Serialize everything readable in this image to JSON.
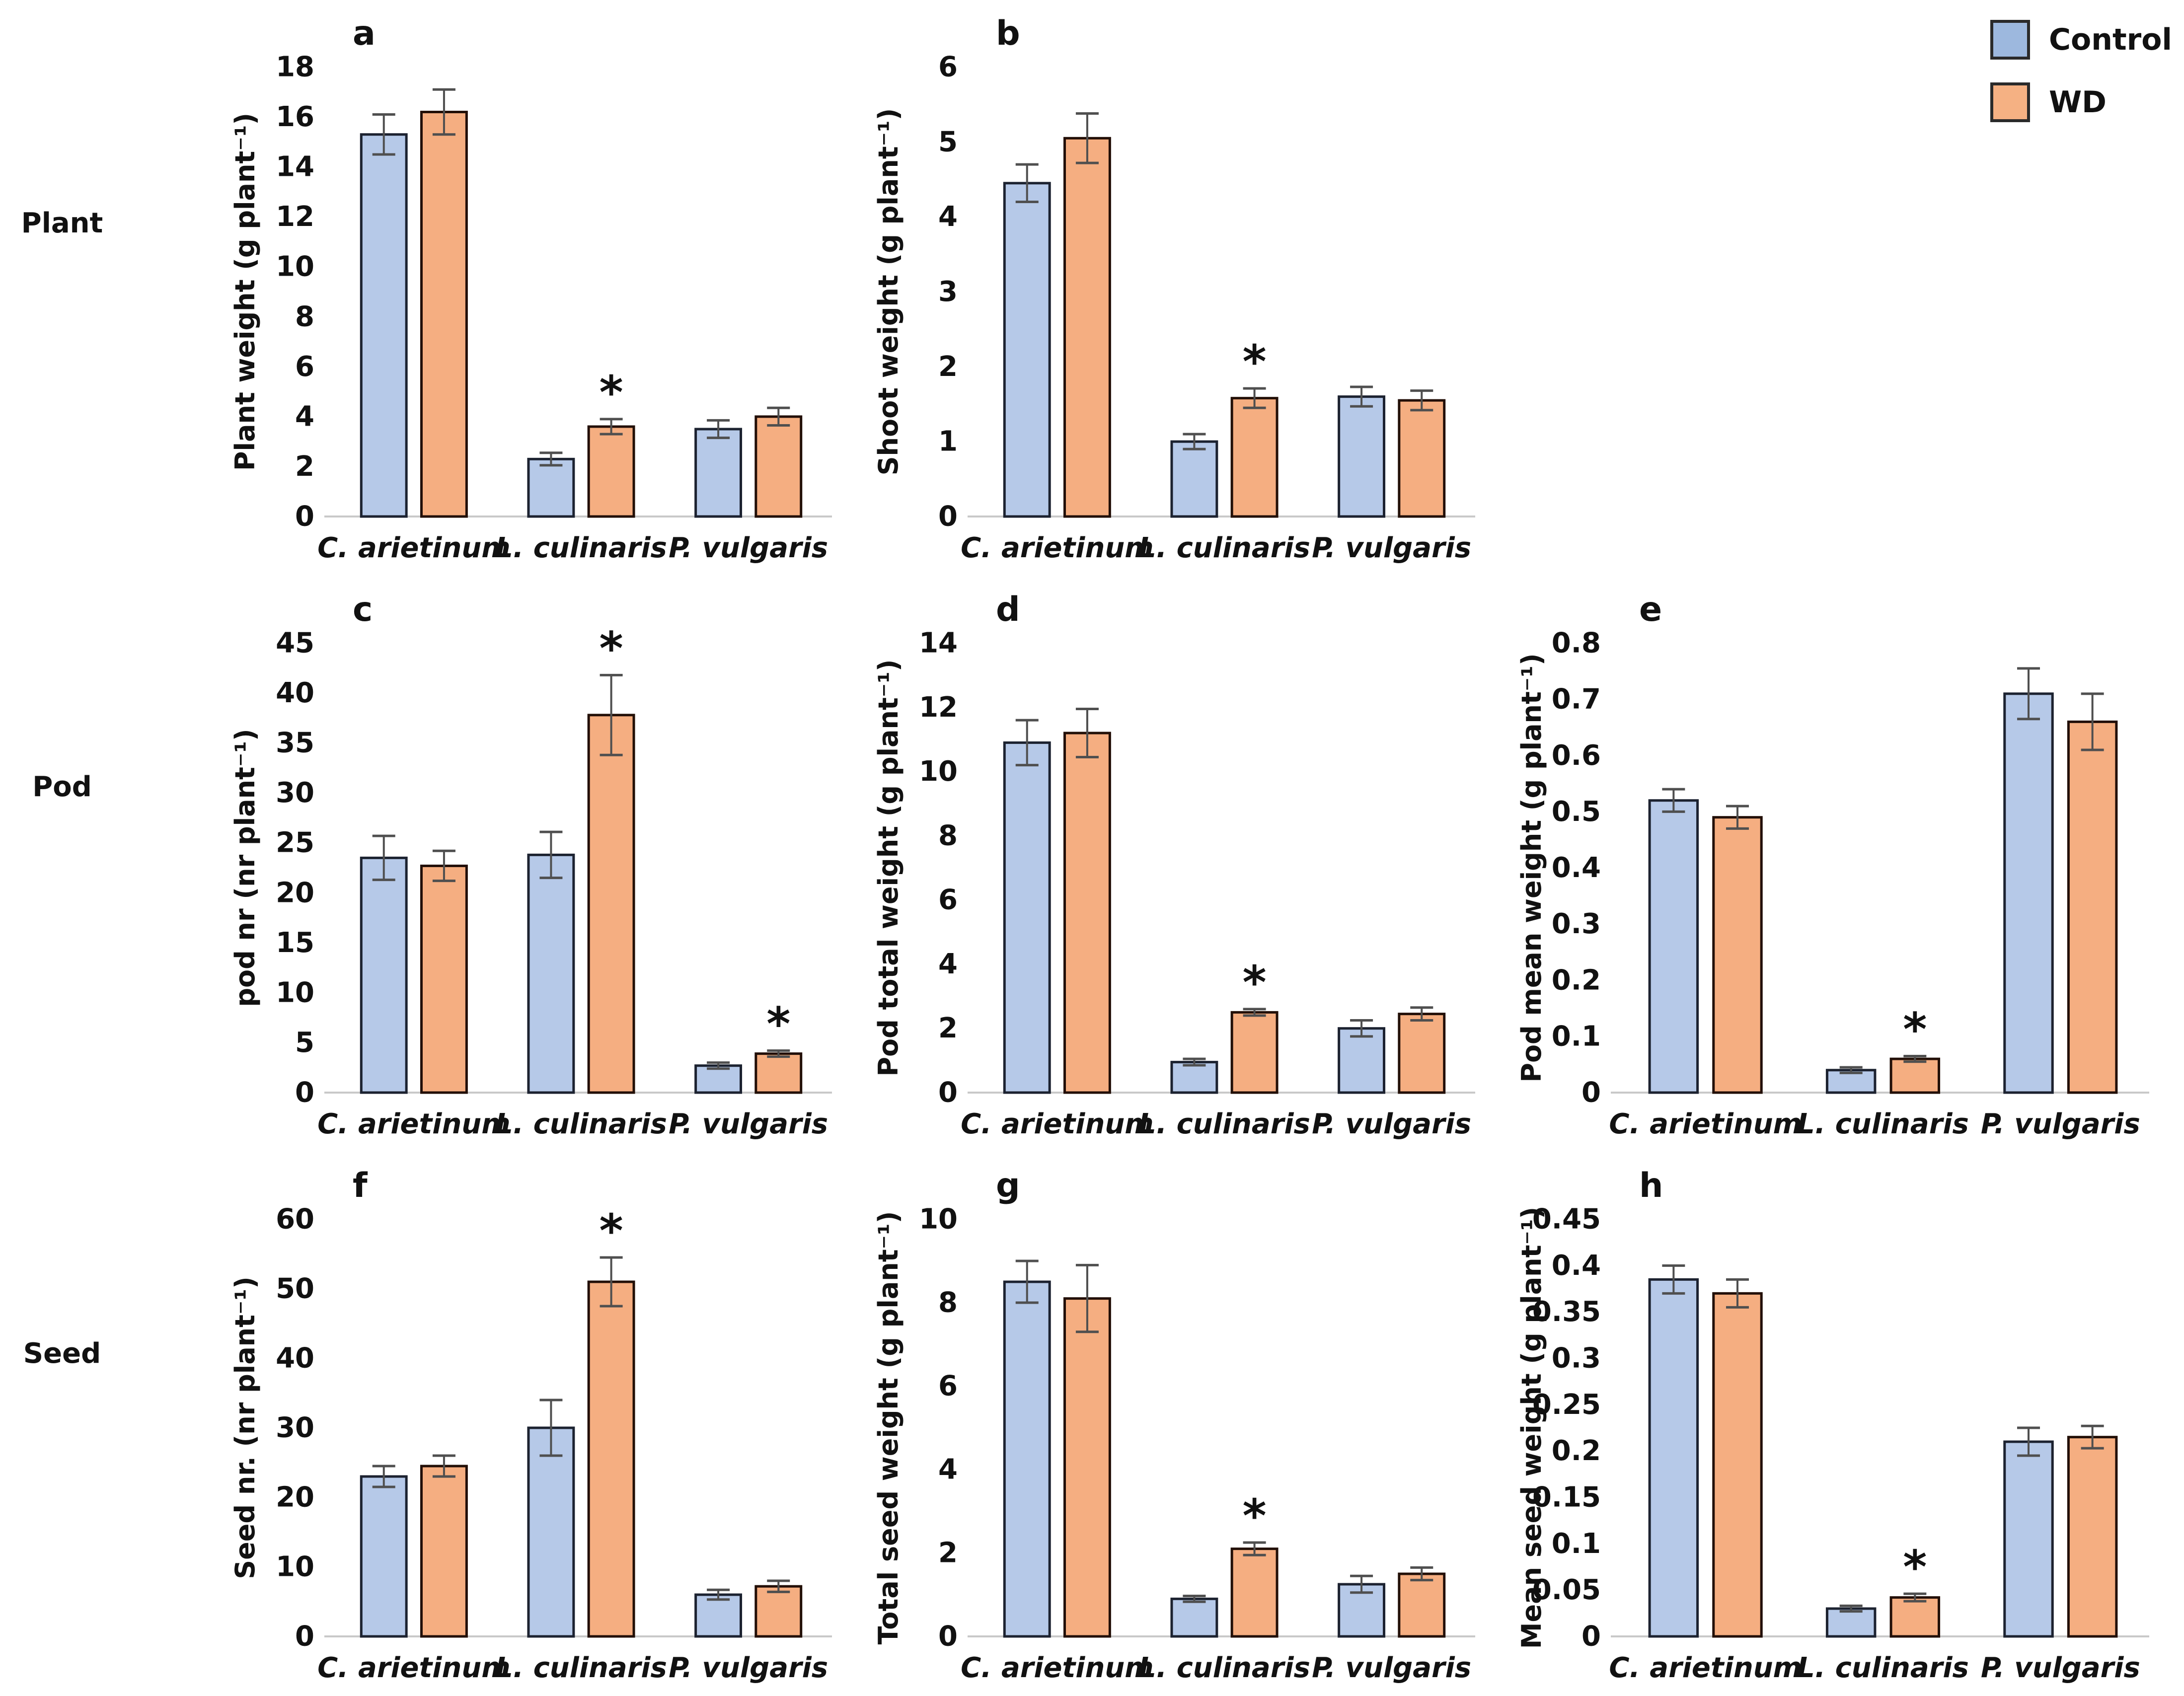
{
  "row_labels": [
    "Plant",
    "Pod",
    "Seed"
  ],
  "legend": {
    "items": [
      {
        "label": "Control",
        "color": "#9db8de"
      },
      {
        "label": "WD",
        "color": "#f5b183"
      }
    ]
  },
  "colors": {
    "control_fill": "#b6c9e8",
    "control_stroke": "#1c2230",
    "wd_fill": "#f5ae81",
    "wd_stroke": "#220f07",
    "legend_control": "#9db8de",
    "legend_wd": "#f5b183",
    "error_bar": "#4f4f4f",
    "baseline": "#c9c9c9",
    "significance_marker": "*"
  },
  "chart_data": [
    {
      "type": "bar",
      "letter": "a",
      "ylabel": "Plant weight (g plant⁻¹)",
      "ylim": [
        0,
        18
      ],
      "ystep": 2,
      "grid": false,
      "categories": [
        "C. arietinum",
        "L. culinaris",
        "P. vulgaris"
      ],
      "series": [
        {
          "name": "Control",
          "values": [
            15.3,
            2.3,
            3.5
          ],
          "errors": [
            0.8,
            0.25,
            0.35
          ],
          "sig": [
            false,
            false,
            false
          ]
        },
        {
          "name": "WD",
          "values": [
            16.2,
            3.6,
            4.0
          ],
          "errors": [
            0.9,
            0.3,
            0.35
          ],
          "sig": [
            false,
            true,
            false
          ]
        }
      ]
    },
    {
      "type": "bar",
      "letter": "b",
      "ylabel": "Shoot weight (g plant⁻¹)",
      "ylim": [
        0,
        6
      ],
      "ystep": 1,
      "grid": false,
      "categories": [
        "C. arietinum",
        "L. culinaris",
        "P. vulgaris"
      ],
      "series": [
        {
          "name": "Control",
          "values": [
            4.45,
            1.0,
            1.6
          ],
          "errors": [
            0.25,
            0.1,
            0.13
          ],
          "sig": [
            false,
            false,
            false
          ]
        },
        {
          "name": "WD",
          "values": [
            5.05,
            1.58,
            1.55
          ],
          "errors": [
            0.33,
            0.13,
            0.13
          ],
          "sig": [
            false,
            true,
            false
          ]
        }
      ]
    },
    {
      "type": "bar",
      "letter": "c",
      "ylabel": "pod nr (nr plant⁻¹)",
      "ylim": [
        0,
        45
      ],
      "ystep": 5,
      "grid": false,
      "categories": [
        "C. arietinum",
        "L. culinaris",
        "P. vulgaris"
      ],
      "series": [
        {
          "name": "Control",
          "values": [
            23.5,
            23.8,
            2.7
          ],
          "errors": [
            2.2,
            2.3,
            0.3
          ],
          "sig": [
            false,
            false,
            false
          ]
        },
        {
          "name": "WD",
          "values": [
            22.7,
            37.8,
            3.9
          ],
          "errors": [
            1.5,
            4.0,
            0.3
          ],
          "sig": [
            false,
            true,
            true
          ]
        }
      ]
    },
    {
      "type": "bar",
      "letter": "d",
      "ylabel": "Pod total weight (g plant⁻¹)",
      "ylim": [
        0,
        14
      ],
      "ystep": 2,
      "grid": false,
      "categories": [
        "C. arietinum",
        "L. culinaris",
        "P. vulgaris"
      ],
      "series": [
        {
          "name": "Control",
          "values": [
            10.9,
            0.95,
            2.0
          ],
          "errors": [
            0.7,
            0.1,
            0.25
          ],
          "sig": [
            false,
            false,
            false
          ]
        },
        {
          "name": "WD",
          "values": [
            11.2,
            2.5,
            2.45
          ],
          "errors": [
            0.75,
            0.1,
            0.2
          ],
          "sig": [
            false,
            true,
            false
          ]
        }
      ]
    },
    {
      "type": "bar",
      "letter": "e",
      "ylabel": "Pod mean weight (g plant⁻¹)",
      "ylim": [
        0,
        0.8
      ],
      "ystep": 0.1,
      "grid": false,
      "categories": [
        "C. arietinum",
        "L. culinaris",
        "P. vulgaris"
      ],
      "series": [
        {
          "name": "Control",
          "values": [
            0.52,
            0.04,
            0.71
          ],
          "errors": [
            0.02,
            0.005,
            0.045
          ],
          "sig": [
            false,
            false,
            false
          ]
        },
        {
          "name": "WD",
          "values": [
            0.49,
            0.06,
            0.66
          ],
          "errors": [
            0.02,
            0.005,
            0.05
          ],
          "sig": [
            false,
            true,
            false
          ]
        }
      ]
    },
    {
      "type": "bar",
      "letter": "f",
      "ylabel": "Seed nr. (nr plant⁻¹)",
      "ylim": [
        0,
        60
      ],
      "ystep": 10,
      "grid": false,
      "categories": [
        "C. arietinum",
        "L. culinaris",
        "P. vulgaris"
      ],
      "series": [
        {
          "name": "Control",
          "values": [
            23,
            30,
            6
          ],
          "errors": [
            1.5,
            4.0,
            0.7
          ],
          "sig": [
            false,
            false,
            false
          ]
        },
        {
          "name": "WD",
          "values": [
            24.5,
            51,
            7.2
          ],
          "errors": [
            1.5,
            3.5,
            0.8
          ],
          "sig": [
            false,
            true,
            false
          ]
        }
      ]
    },
    {
      "type": "bar",
      "letter": "g",
      "ylabel": "Total seed weight (g plant⁻¹)",
      "ylim": [
        0,
        10
      ],
      "ystep": 2,
      "grid": false,
      "categories": [
        "C. arietinum",
        "L. culinaris",
        "P. vulgaris"
      ],
      "series": [
        {
          "name": "Control",
          "values": [
            8.5,
            0.9,
            1.25
          ],
          "errors": [
            0.5,
            0.07,
            0.2
          ],
          "sig": [
            false,
            false,
            false
          ]
        },
        {
          "name": "WD",
          "values": [
            8.1,
            2.1,
            1.5
          ],
          "errors": [
            0.8,
            0.15,
            0.15
          ],
          "sig": [
            false,
            true,
            false
          ]
        }
      ]
    },
    {
      "type": "bar",
      "letter": "h",
      "ylabel": "Mean seed weight (g plant⁻¹)",
      "ylim": [
        0,
        0.45
      ],
      "ystep": 0.05,
      "grid": false,
      "categories": [
        "C. arietinum",
        "L. culinaris",
        "P. vulgaris"
      ],
      "series": [
        {
          "name": "Control",
          "values": [
            0.385,
            0.03,
            0.21
          ],
          "errors": [
            0.015,
            0.003,
            0.015
          ],
          "sig": [
            false,
            false,
            false
          ]
        },
        {
          "name": "WD",
          "values": [
            0.37,
            0.042,
            0.215
          ],
          "errors": [
            0.015,
            0.004,
            0.012
          ],
          "sig": [
            false,
            true,
            false
          ]
        }
      ]
    }
  ]
}
